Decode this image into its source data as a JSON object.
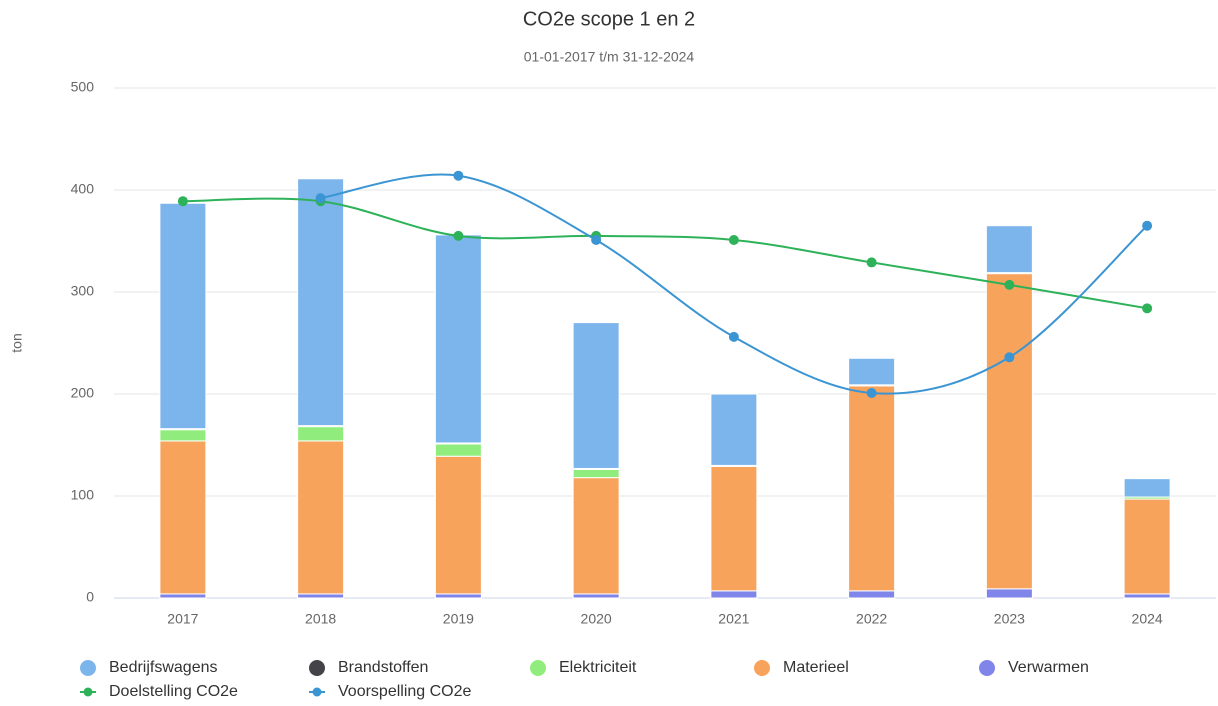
{
  "chart_data": {
    "type": "bar",
    "stacked": true,
    "title": "CO2e scope 1 en 2",
    "subtitle": "01-01-2017 t/m 31-12-2024",
    "y_label": "ton",
    "categories": [
      "2017",
      "2018",
      "2019",
      "2020",
      "2021",
      "2022",
      "2023",
      "2024"
    ],
    "ylim": [
      0,
      500
    ],
    "yticks": [
      0,
      100,
      200,
      300,
      400,
      500
    ],
    "grid": true,
    "series": [
      {
        "name": "Bedrijfswagens",
        "color": "#7cb5ec",
        "values": [
          221,
          242,
          204,
          143,
          70,
          26,
          46,
          18
        ]
      },
      {
        "name": "Brandstoffen",
        "color": "#434348",
        "values": [
          1,
          1,
          1,
          1,
          1,
          1,
          1,
          0
        ]
      },
      {
        "name": "Elektriciteit",
        "color": "#90ed7d",
        "values": [
          11,
          14,
          12,
          8,
          0,
          0,
          0,
          2
        ]
      },
      {
        "name": "Materieel",
        "color": "#f7a35c",
        "values": [
          150,
          150,
          135,
          114,
          122,
          201,
          309,
          93
        ]
      },
      {
        "name": "Verwarmen",
        "color": "#8085e9",
        "values": [
          4,
          4,
          4,
          4,
          7,
          7,
          9,
          4
        ]
      },
      {
        "name": "Doelstelling CO2e",
        "type": "line",
        "color": "#2db259",
        "values": [
          389,
          389,
          355,
          355,
          351,
          329,
          307,
          284
        ]
      },
      {
        "name": "Voorspelling CO2e",
        "type": "line",
        "color": "#3b95d3",
        "values": [
          null,
          392,
          414,
          351,
          256,
          201,
          236,
          365
        ]
      }
    ]
  }
}
